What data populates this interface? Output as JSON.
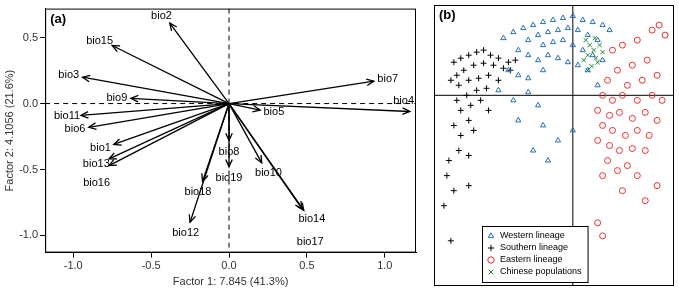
{
  "chart_data": [
    {
      "type": "biplot",
      "title": "(a)",
      "x_label": "Factor 1: 7.845 (41.3%)",
      "y_label": "Factor 2: 4.1056 (21.6%)",
      "xlim": [
        -1.18,
        1.2
      ],
      "ylim": [
        -1.13,
        0.72
      ],
      "xticks": [
        {
          "value": -1,
          "label": "-1.0"
        },
        {
          "value": -0.5,
          "label": "-0.5"
        },
        {
          "value": 0,
          "label": "0.0"
        },
        {
          "value": 0.5,
          "label": "0.5"
        },
        {
          "value": 1,
          "label": "1.0"
        }
      ],
      "yticks": [
        {
          "value": -1,
          "label": "-1.0"
        },
        {
          "value": -0.5,
          "label": "-0.5"
        },
        {
          "value": 0,
          "label": "0.0"
        },
        {
          "value": 0.5,
          "label": "0.5"
        }
      ],
      "xlines": [
        0
      ],
      "ylines": [
        0
      ],
      "grid": false,
      "color": "#000000",
      "vectors": [
        {
          "name": "bio1",
          "x": -0.74,
          "y": -0.31
        },
        {
          "name": "bio2",
          "x": -0.38,
          "y": 0.61
        },
        {
          "name": "bio3",
          "x": -0.94,
          "y": 0.2
        },
        {
          "name": "bio4",
          "x": 1.16,
          "y": -0.06
        },
        {
          "name": "bio5",
          "x": 0.2,
          "y": -0.05
        },
        {
          "name": "bio6",
          "x": -0.9,
          "y": -0.18
        },
        {
          "name": "bio7",
          "x": 0.93,
          "y": 0.17
        },
        {
          "name": "bio8",
          "x": 0.0,
          "y": -0.28
        },
        {
          "name": "bio9",
          "x": -0.63,
          "y": 0.04
        },
        {
          "name": "bio10",
          "x": 0.21,
          "y": -0.45
        },
        {
          "name": "bio11",
          "x": -0.95,
          "y": -0.09
        },
        {
          "name": "bio12",
          "x": -0.25,
          "y": -0.9
        },
        {
          "name": "bio13",
          "x": -0.77,
          "y": -0.42
        },
        {
          "name": "bio14",
          "x": 0.48,
          "y": -0.81
        },
        {
          "name": "bio15",
          "x": -0.75,
          "y": 0.44
        },
        {
          "name": "bio16",
          "x": -0.77,
          "y": -0.47
        },
        {
          "name": "bio17",
          "x": 0.47,
          "y": -0.8
        },
        {
          "name": "bio18",
          "x": -0.17,
          "y": -0.59
        },
        {
          "name": "bio19",
          "x": 0.0,
          "y": -0.48
        }
      ]
    },
    {
      "type": "scatter",
      "title": "(b)",
      "xlim": [
        -2.8,
        2.04
      ],
      "ylim": [
        -3.8,
        1.8
      ],
      "tick_labels": false,
      "xlines": [
        0
      ],
      "ylines": [
        0
      ],
      "legend": "bottom",
      "series": [
        {
          "name": "Western lineage",
          "color": "#2a6ebb",
          "marker": "triangle",
          "x": [
            -1.4,
            -1.2,
            -1.0,
            -0.8,
            -0.6,
            -0.4,
            -0.2,
            0,
            0.2,
            0.4,
            0.6,
            0.74,
            -0.9,
            -0.7,
            -0.5,
            -0.3,
            -0.1,
            0.1,
            0.3,
            0.5,
            -0.6,
            -0.4,
            -0.2,
            0,
            0.2,
            0.4,
            0.6,
            -1.1,
            -0.9,
            -0.7,
            -0.5,
            -0.3,
            -0.1,
            0.1,
            -1.3,
            -1.1,
            -0.9,
            -0.6,
            -1.5,
            -1.2,
            -0.9,
            -0.7,
            -1.1,
            -0.6,
            -0.3,
            -0.8,
            -0.5,
            0,
            0.3,
            0.5
          ],
          "y": [
            1.14,
            1.26,
            1.34,
            1.4,
            1.46,
            1.5,
            1.54,
            1.58,
            1.5,
            1.46,
            1.4,
            1.3,
            1.1,
            1.2,
            1.26,
            1.3,
            1.34,
            1.3,
            1.2,
            1.1,
            1.0,
            1.06,
            1.1,
            1.0,
            0.9,
            0.8,
            0.7,
            0.9,
            0.8,
            0.7,
            0.8,
            0.74,
            0.66,
            0.6,
            0.5,
            0.4,
            0.34,
            0.5,
            0.1,
            -0.1,
            0.06,
            -0.2,
            -0.5,
            -0.6,
            -0.9,
            -1.1,
            -1.3,
            -0.7,
            0.5,
            0.2
          ]
        },
        {
          "name": "Southern lineage",
          "color": "#000000",
          "marker": "cross",
          "x": [
            -2.4,
            -2.26,
            -2.1,
            -1.94,
            -1.8,
            -1.66,
            -1.5,
            -1.3,
            -1.16,
            -1.26,
            -1.4,
            -1.6,
            -1.8,
            -2.0,
            -2.2,
            -2.34,
            -2.46,
            -2.3,
            -2.1,
            -1.9,
            -1.7,
            -1.5,
            -1.74,
            -1.94,
            -2.14,
            -2.34,
            -2.26,
            -2.06,
            -1.86,
            -1.7,
            -2.1,
            -2.4,
            -2.26,
            -2.0,
            -2.3,
            -2.5,
            -2.1,
            -2.54,
            -2.4,
            -2.6,
            -2.46,
            -2.1
          ],
          "y": [
            0.66,
            0.74,
            0.8,
            0.86,
            0.9,
            0.8,
            0.74,
            0.66,
            0.7,
            0.5,
            0.54,
            0.6,
            0.64,
            0.6,
            0.5,
            0.4,
            0.3,
            0.2,
            0.3,
            0.34,
            0.4,
            0.3,
            0.14,
            0.1,
            0,
            -0.1,
            -0.3,
            -0.2,
            -0.1,
            -0.3,
            -0.5,
            -0.6,
            -0.8,
            -0.7,
            -1.1,
            -1.3,
            -1.2,
            -1.6,
            -1.9,
            -2.2,
            -2.9,
            -1.8
          ]
        },
        {
          "name": "Eastern lineage",
          "color": "#e8312f",
          "marker": "circle",
          "x": [
            0.8,
            1.0,
            1.3,
            1.6,
            1.74,
            1.86,
            1.5,
            1.2,
            0.9,
            0.7,
            1.1,
            1.4,
            1.7,
            0.6,
            0.8,
            1.0,
            1.3,
            1.6,
            1.8,
            0.5,
            0.74,
            0.94,
            1.2,
            1.46,
            1.7,
            0.6,
            0.8,
            1.06,
            1.3,
            1.54,
            0.5,
            0.74,
            0.94,
            1.2,
            1.46,
            0.7,
            0.9,
            1.1,
            0.6,
            1.3,
            1.0,
            1.46,
            0.5,
            0.6,
            1.7
          ],
          "y": [
            0.9,
            1.0,
            1.1,
            1.3,
            1.4,
            1.2,
            0.7,
            0.6,
            0.5,
            0.3,
            0.2,
            0.3,
            0.4,
            0,
            -0.1,
            0,
            -0.1,
            0,
            -0.1,
            -0.3,
            -0.4,
            -0.34,
            -0.46,
            -0.34,
            -0.5,
            -0.6,
            -0.7,
            -0.8,
            -0.7,
            -0.8,
            -0.9,
            -1.0,
            -1.1,
            -1.06,
            -1.1,
            -1.3,
            -1.5,
            -1.4,
            -1.6,
            -1.6,
            -1.9,
            -2.1,
            -2.54,
            -2.8,
            -1.8
          ]
        },
        {
          "name": "Chinese populations",
          "color": "#1e8c2f",
          "marker": "x",
          "x": [
            0.26,
            0.34,
            0.42,
            0.3,
            0.46,
            0.5,
            0.38,
            0.22,
            0.54,
            0.44,
            0.6,
            0.3
          ],
          "y": [
            1.1,
            1.0,
            0.9,
            0.8,
            0.74,
            0.66,
            0.58,
            0.7,
            1.0,
            1.14,
            0.86,
            0.5
          ]
        }
      ]
    }
  ]
}
